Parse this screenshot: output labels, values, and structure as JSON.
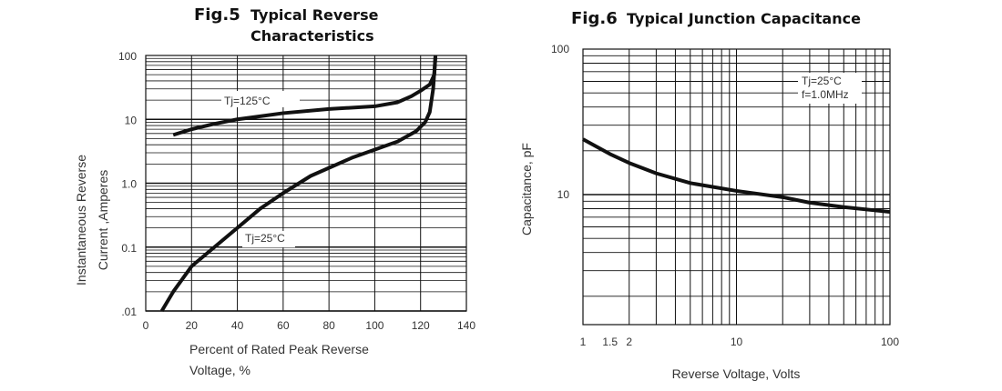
{
  "chart_data": [
    {
      "type": "line",
      "title_prefix": "Fig.5",
      "title": [
        "Typical Reverse",
        "Characteristics"
      ],
      "xlabel": [
        "Percent of Rated Peak  Reverse",
        "Voltage, %"
      ],
      "ylabel": [
        "Instantaneous Reverse",
        "Current ,Amperes"
      ],
      "xlim": [
        0,
        140
      ],
      "ylim": [
        0.01,
        100
      ],
      "yscale": "log",
      "grid": true,
      "xticks": [
        "0",
        "20",
        "40",
        "60",
        "80",
        "100",
        "120",
        "140"
      ],
      "yticks": [
        ".01",
        "0.1",
        "1.0",
        "10",
        "100"
      ],
      "series": [
        {
          "name": "Tj=125°C",
          "x": [
            12,
            20,
            30,
            40,
            60,
            80,
            100,
            110,
            116,
            120,
            124,
            126,
            126.5
          ],
          "y": [
            5.7,
            7,
            8.5,
            10,
            12.5,
            14.5,
            16,
            18.5,
            23,
            28,
            35,
            50,
            100
          ]
        },
        {
          "name": "Tj=25°C",
          "x": [
            7,
            12,
            20,
            30,
            40,
            50,
            60,
            72,
            90,
            110,
            118,
            122,
            124,
            125.5,
            126.5
          ],
          "y": [
            0.01,
            0.02,
            0.05,
            0.1,
            0.2,
            0.4,
            0.7,
            1.3,
            2.5,
            4.5,
            6.5,
            9,
            13,
            30,
            100
          ]
        }
      ]
    },
    {
      "type": "line",
      "title_prefix": "Fig.6",
      "title": [
        "Typical Junction Capacitance"
      ],
      "xlabel": [
        "Reverse Voltage, Volts"
      ],
      "ylabel": [
        "Capacitance, pF"
      ],
      "xlim": [
        1,
        100
      ],
      "xscale": "log",
      "ylim": [
        1.3,
        100
      ],
      "yscale": "log",
      "grid": true,
      "xticks": [
        "1",
        "1.5",
        "2",
        "10",
        "100"
      ],
      "yticks": [
        "10",
        "100"
      ],
      "annotation": [
        "Tj=25°C",
        "f=1.0MHz"
      ],
      "series": [
        {
          "x": [
            1,
            1.5,
            2,
            3,
            5,
            10,
            20,
            30,
            50,
            100
          ],
          "y": [
            24,
            19,
            16.5,
            14,
            12,
            10.6,
            9.6,
            8.8,
            8.2,
            7.6
          ]
        }
      ]
    }
  ]
}
